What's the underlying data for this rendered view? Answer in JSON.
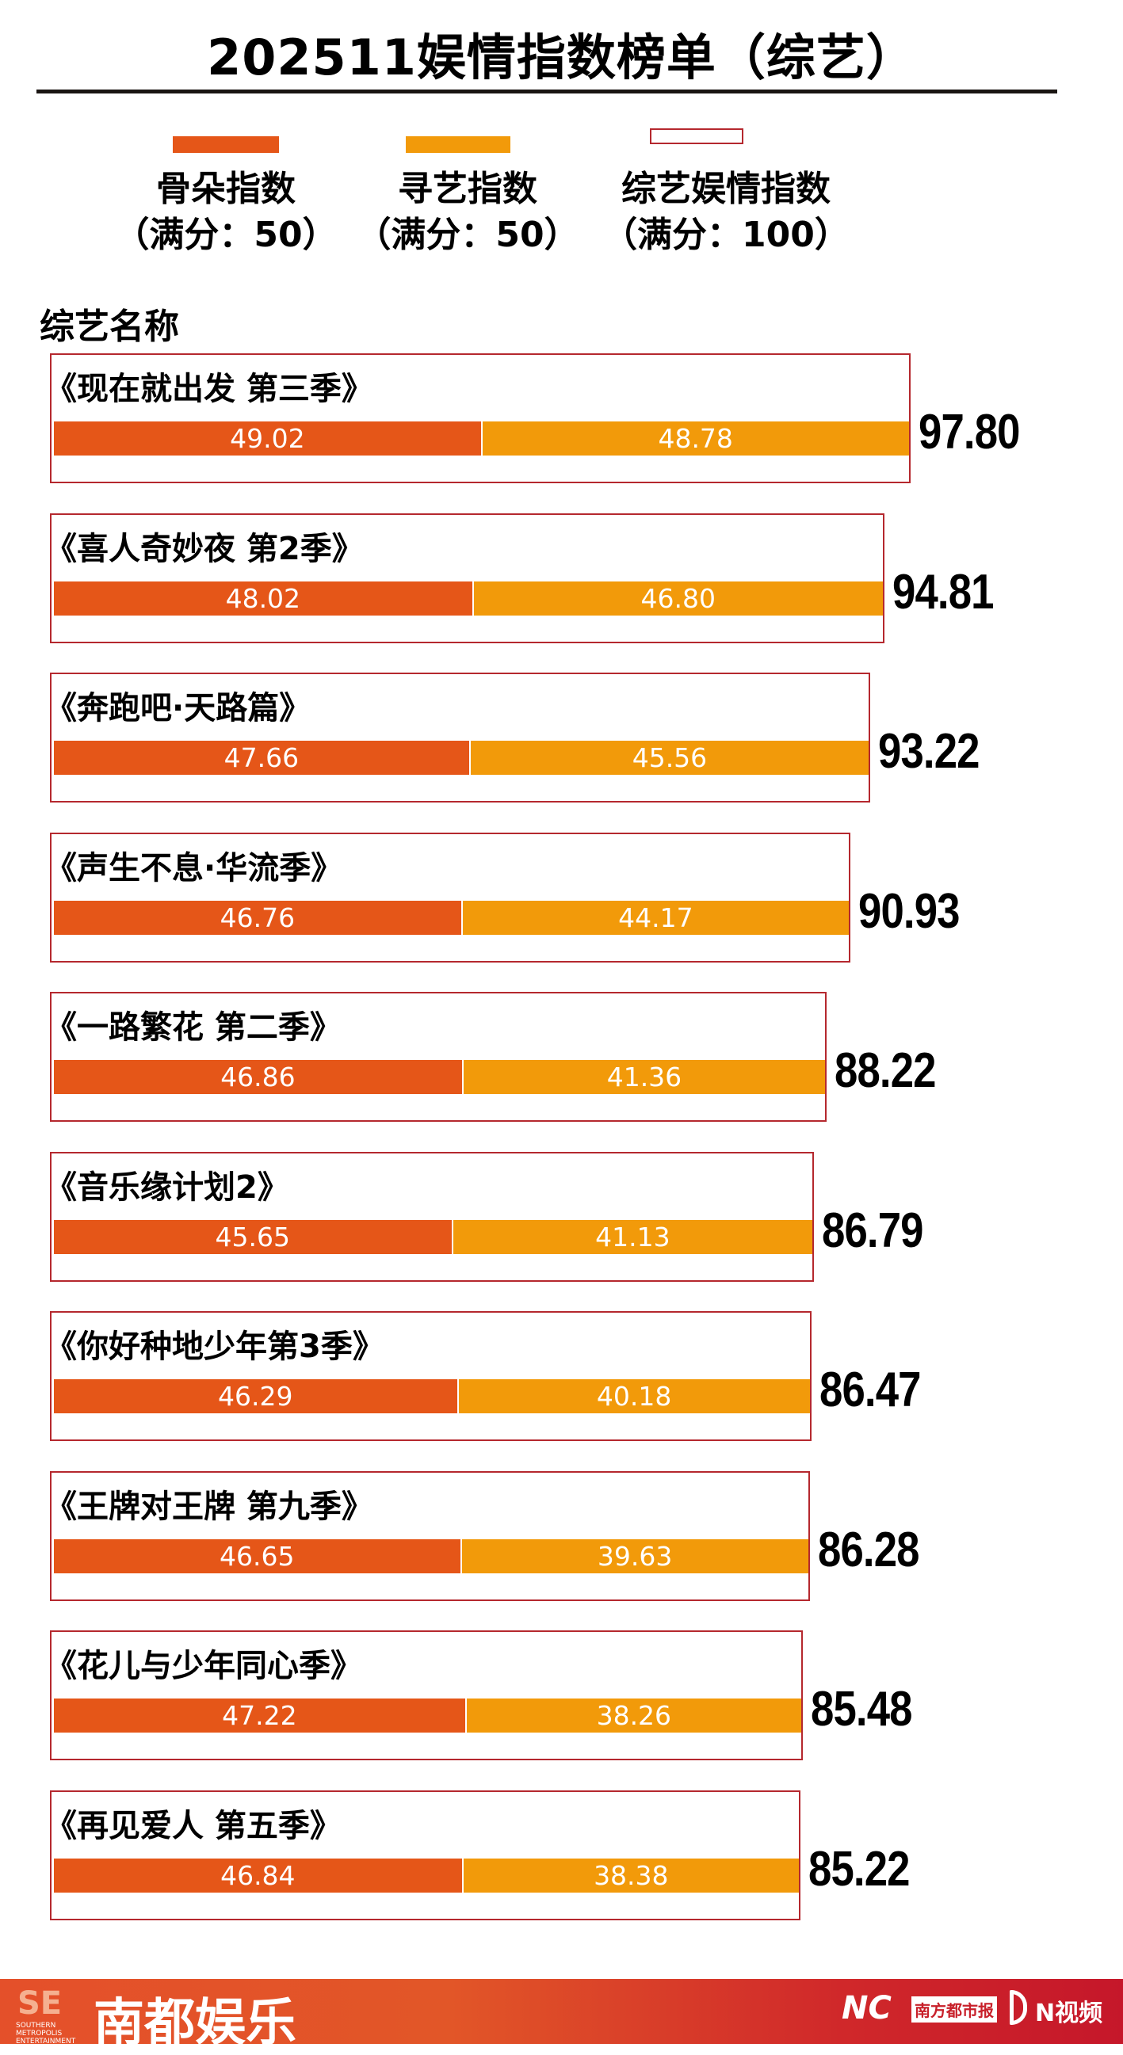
{
  "title": "202511娱情指数榜单（综艺）",
  "legend": [
    {
      "label": "骨朵指数",
      "note": "（满分：50）",
      "color": "#e55618"
    },
    {
      "label": "寻艺指数",
      "note": "（满分：50）",
      "color": "#f29a0a"
    },
    {
      "label": "综艺娱情指数",
      "note": "（满分：100）",
      "color": "#b5282e"
    }
  ],
  "column_header": "综艺名称",
  "chart_data": {
    "type": "bar",
    "stacked": true,
    "orientation": "horizontal",
    "title": "202511娱情指数榜单（综艺）",
    "categories": [
      "《现在就出发 第三季》",
      "《喜人奇妙夜 第2季》",
      "《奔跑吧·天路篇》",
      "《声生不息·华流季》",
      "《一路繁花 第二季》",
      "《音乐缘计划2》",
      "《你好种地少年第3季》",
      "《王牌对王牌 第九季》",
      "《花儿与少年同心季》",
      "《再见爱人 第五季》"
    ],
    "series": [
      {
        "name": "骨朵指数",
        "values": [
          "49.02",
          "48.02",
          "47.66",
          "46.76",
          "46.86",
          "45.65",
          "46.29",
          "46.65",
          "47.22",
          "46.84"
        ]
      },
      {
        "name": "寻艺指数",
        "values": [
          "48.78",
          "46.80",
          "45.56",
          "44.17",
          "41.36",
          "41.13",
          "40.18",
          "39.63",
          "38.26",
          "38.38"
        ]
      }
    ],
    "totals": [
      "97.80",
      "94.81",
      "93.22",
      "90.93",
      "88.22",
      "86.79",
      "86.47",
      "86.28",
      "85.48",
      "85.22"
    ],
    "xlim": [
      0,
      100
    ]
  },
  "footer": {
    "brand": "南都娱乐",
    "brand_mark": "SE",
    "brand_sub": "SOUTHERN METROPOLIS ENTERTAINMENT",
    "partner1": "NC",
    "partner2": "南方都市报",
    "partner3": "N视频"
  }
}
